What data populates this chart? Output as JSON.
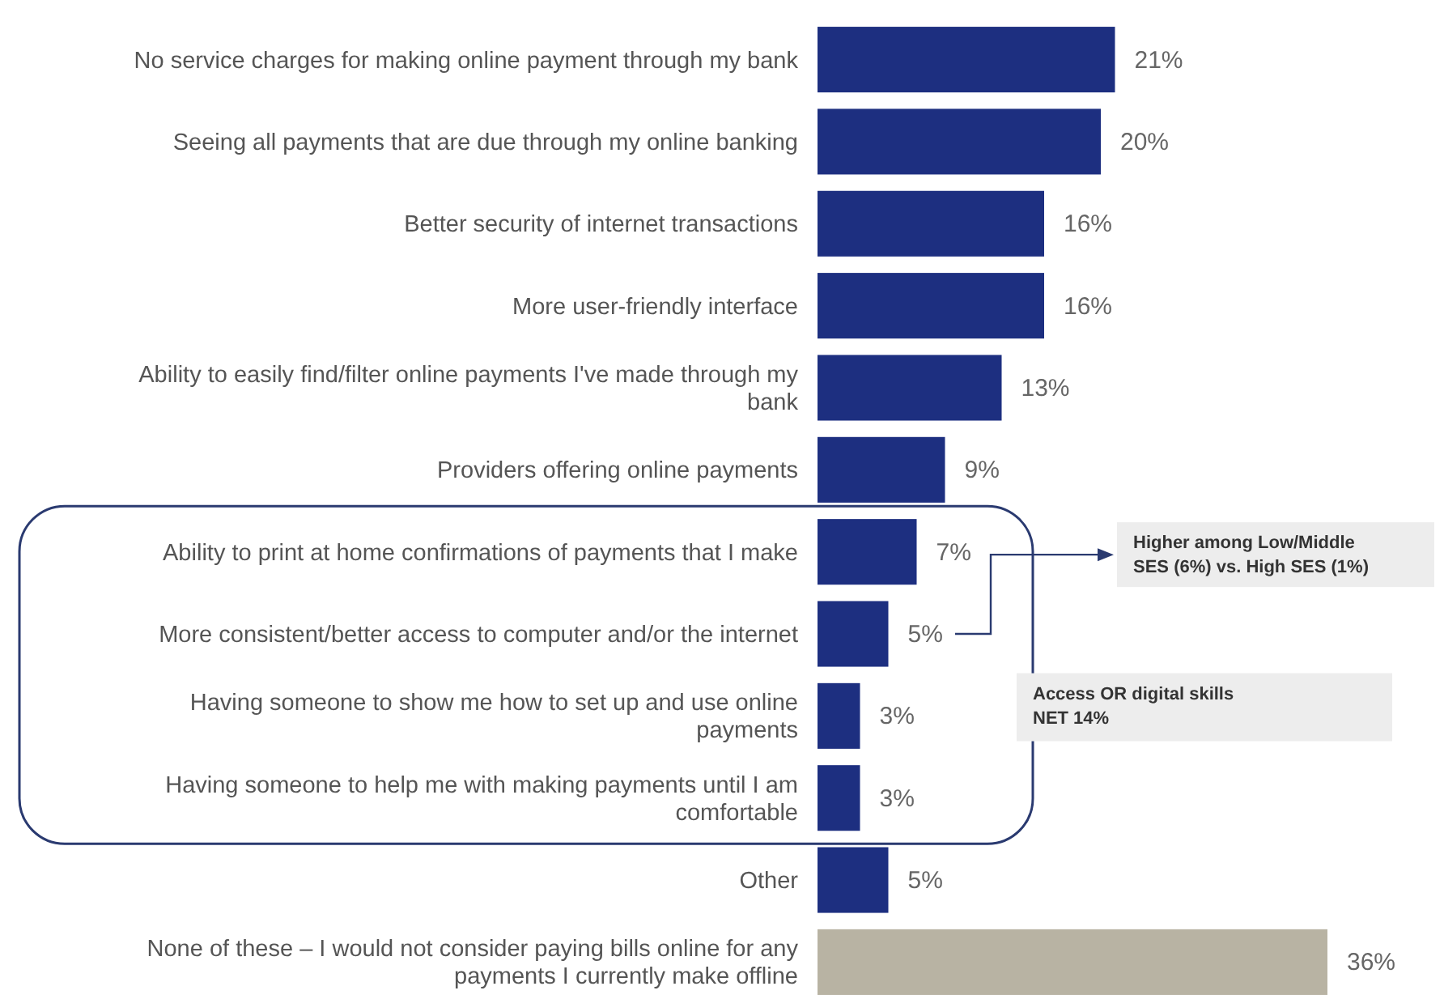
{
  "chart_data": {
    "type": "bar",
    "orientation": "horizontal",
    "categories": [
      "No service charges for making online payment through my bank",
      "Seeing all payments that are due through my online banking",
      "Better security of internet transactions",
      "More user-friendly interface",
      "Ability to easily find/filter online payments I've made through my bank",
      "Providers offering online payments",
      "Ability to print at home confirmations of payments that I make",
      "More consistent/better access to computer and/or the internet",
      "Having someone to show me how to set up and use online payments",
      "Having someone to help me with making payments until I am comfortable",
      "Other",
      "None of these – I would not consider paying bills online for any payments I currently make offline"
    ],
    "values": [
      21,
      20,
      16,
      16,
      13,
      9,
      7,
      5,
      3,
      3,
      5,
      36
    ],
    "value_labels": [
      "21%",
      "20%",
      "16%",
      "16%",
      "13%",
      "9%",
      "7%",
      "5%",
      "3%",
      "3%",
      "5%",
      "36%"
    ],
    "colors": [
      "#1d2f80",
      "#1d2f80",
      "#1d2f80",
      "#1d2f80",
      "#1d2f80",
      "#1d2f80",
      "#1d2f80",
      "#1d2f80",
      "#1d2f80",
      "#1d2f80",
      "#1d2f80",
      "#b8b3a3"
    ],
    "annotations": [
      "Higher among Low/Middle SES (6%) vs. High SES (1%)",
      "Access OR digital skills NET 14%"
    ]
  }
}
